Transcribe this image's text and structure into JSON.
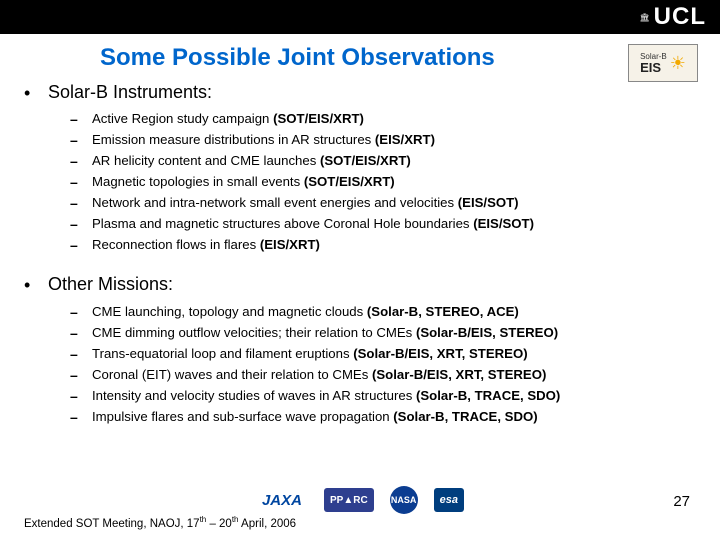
{
  "header": {
    "logo_text": "UCL"
  },
  "title": "Some Possible Joint Observations",
  "badge": {
    "top": "Solar-B",
    "main": "EIS"
  },
  "sections": [
    {
      "head": "Solar-B Instruments:",
      "items": [
        {
          "text": "Active Region study campaign ",
          "bold": "(SOT/EIS/XRT)"
        },
        {
          "text": "Emission measure distributions in AR structures ",
          "bold": "(EIS/XRT)"
        },
        {
          "text": "AR helicity content and CME launches ",
          "bold": "(SOT/EIS/XRT)"
        },
        {
          "text": "Magnetic topologies in small events ",
          "bold": "(SOT/EIS/XRT)"
        },
        {
          "text": "Network and intra-network small event energies and velocities ",
          "bold": "(EIS/SOT)"
        },
        {
          "text": "Plasma and magnetic structures above Coronal Hole boundaries ",
          "bold": "(EIS/SOT)"
        },
        {
          "text": "Reconnection flows in flares ",
          "bold": "(EIS/XRT)"
        }
      ]
    },
    {
      "head": "Other Missions:",
      "items": [
        {
          "text": "CME launching, topology and magnetic clouds ",
          "bold": "(Solar-B, STEREO, ACE)"
        },
        {
          "text": "CME dimming outflow velocities; their relation to CMEs ",
          "bold": "(Solar-B/EIS, STEREO)"
        },
        {
          "text": "Trans-equatorial loop and filament eruptions ",
          "bold": "(Solar-B/EIS, XRT, STEREO)"
        },
        {
          "text": "Coronal (EIT) waves and their relation to CMEs ",
          "bold": "(Solar-B/EIS, XRT, STEREO)"
        },
        {
          "text": "Intensity and velocity studies of waves in AR structures ",
          "bold": "(Solar-B, TRACE, SDO)"
        },
        {
          "text": "Impulsive flares and sub-surface wave propagation ",
          "bold": "(Solar-B, TRACE, SDO)"
        }
      ]
    }
  ],
  "footer_logos": {
    "jaxa": "JAXA",
    "pparc": "PP▲RC",
    "nasa": "NASA",
    "esa": "esa"
  },
  "slide_number": "27",
  "footer": {
    "prefix": "Extended SOT Meeting, NAOJ, 17",
    "sup1": "th",
    "mid": " – 20",
    "sup2": "th",
    "suffix": " April, 2006"
  }
}
